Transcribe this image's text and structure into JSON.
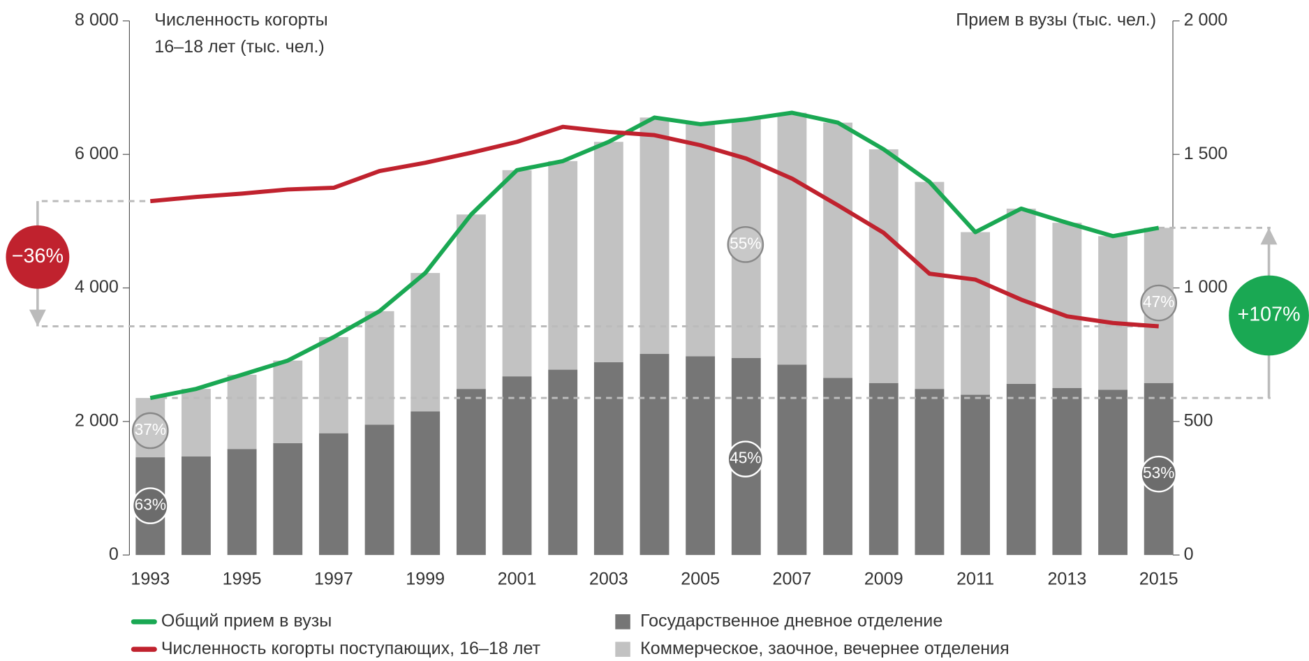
{
  "chart_data": {
    "type": "bar",
    "stacked": true,
    "categories": [
      "1993",
      null,
      "1995",
      null,
      "1997",
      null,
      "1999",
      null,
      "2001",
      null,
      "2003",
      null,
      "2005",
      null,
      "2007",
      null,
      "2009",
      null,
      "2011",
      null,
      "2013",
      null,
      "2015"
    ],
    "y_label": [
      "Численность когорты",
      "16–18 лет (тыс. чел.)"
    ],
    "y2_label": "Прием в вузы (тыс. чел.)",
    "ylim": [
      0,
      8000
    ],
    "yticks": [
      0,
      {
        "value": 2000,
        "label": "2 000"
      },
      {
        "value": 4000,
        "label": "4 000"
      },
      {
        "value": 6000,
        "label": "6 000"
      },
      {
        "value": 8000,
        "label": "8 000"
      }
    ],
    "y2lim": [
      0,
      2000
    ],
    "y2ticks": [
      0,
      500,
      {
        "value": 1000,
        "label": "1 000"
      },
      {
        "value": 1500,
        "label": "1 500"
      },
      {
        "value": 2000,
        "label": "2 000"
      }
    ],
    "series": [
      {
        "name": "Общий прием в вузы",
        "type": "line",
        "axis": "y2",
        "color": "#1aa853",
        "values": [
          588,
          622,
          675,
          728,
          816,
          913,
          1056,
          1275,
          1441,
          1475,
          1547,
          1638,
          1613,
          1631,
          1656,
          1619,
          1519,
          1397,
          1209,
          1297,
          1244,
          1194,
          1225
        ]
      },
      {
        "name": "Численность когорты поступающих, 16–18 лет",
        "type": "line",
        "axis": "y",
        "color": "#c0222e",
        "values": [
          5300,
          5363,
          5413,
          5475,
          5500,
          5750,
          5875,
          6025,
          6188,
          6413,
          6338,
          6288,
          6138,
          5938,
          5638,
          5238,
          4825,
          4213,
          4125,
          3825,
          3575,
          3475,
          3425
        ]
      },
      {
        "name": "Государственное дневное отделение",
        "type": "bar",
        "axis": "y2",
        "color": "#767676",
        "values": [
          366,
          369,
          397,
          419,
          456,
          488,
          538,
          622,
          669,
          694,
          722,
          753,
          744,
          738,
          713,
          663,
          644,
          622,
          600,
          641,
          625,
          619,
          644
        ]
      },
      {
        "name": "Коммерческое, заочное, вечернее отделения",
        "type": "bar",
        "axis": "y2",
        "color": "#c2c2c2",
        "values": [
          222,
          253,
          278,
          309,
          360,
          425,
          518,
          653,
          772,
          781,
          825,
          885,
          869,
          893,
          943,
          956,
          875,
          775,
          609,
          656,
          619,
          575,
          581
        ]
      }
    ],
    "annotations": [
      "−36%",
      "+107%",
      "37%",
      "63%",
      "55%",
      "45%",
      "47%",
      "53%"
    ]
  }
}
